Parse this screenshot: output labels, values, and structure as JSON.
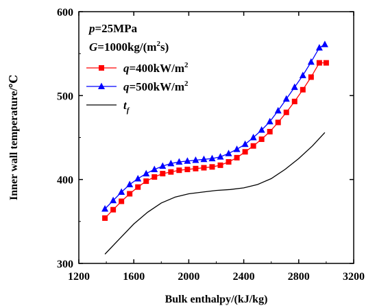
{
  "chart_data": {
    "type": "line",
    "title": "",
    "xlabel": "Bulk enthalpy/(kJ/kg)",
    "ylabel": "Inner wall temperature/℃",
    "xlim": [
      1200,
      3200
    ],
    "ylim": [
      300,
      600
    ],
    "x_ticks": [
      1200,
      1600,
      2000,
      2400,
      2800,
      3200
    ],
    "y_ticks": [
      300,
      400,
      500,
      600
    ],
    "grid": false,
    "legend_position": "top-left",
    "annotations": [
      {
        "italic": "p",
        "text": "=25MPa"
      },
      {
        "italic": "G",
        "text": "=1000kg/(m",
        "sup": "2",
        "tail": "s)"
      }
    ],
    "series": [
      {
        "name": "q=400kW/m2",
        "legend": {
          "italic": "q",
          "text": "=400kW/m",
          "sup": "2"
        },
        "color": "#ff0000",
        "marker": "square",
        "x": [
          1390,
          1450,
          1510,
          1570,
          1630,
          1690,
          1750,
          1810,
          1870,
          1930,
          1990,
          2050,
          2110,
          2170,
          2230,
          2290,
          2350,
          2410,
          2470,
          2530,
          2590,
          2650,
          2710,
          2770,
          2830,
          2890,
          2950,
          3000
        ],
        "y": [
          354,
          364,
          374,
          383,
          391,
          398,
          403,
          407,
          409,
          411,
          412,
          413,
          414,
          415,
          417,
          421,
          426,
          433,
          440,
          448,
          457,
          468,
          480,
          493,
          507,
          522,
          539,
          539
        ]
      },
      {
        "name": "q=500kW/m2",
        "legend": {
          "italic": "q",
          "text": "=500kW/m",
          "sup": "2"
        },
        "color": "#0000ff",
        "marker": "triangle",
        "x": [
          1390,
          1450,
          1510,
          1570,
          1630,
          1690,
          1750,
          1810,
          1870,
          1930,
          1990,
          2050,
          2110,
          2170,
          2230,
          2290,
          2350,
          2410,
          2470,
          2530,
          2590,
          2650,
          2710,
          2770,
          2830,
          2890,
          2950,
          2990
        ],
        "y": [
          365,
          375,
          385,
          394,
          401,
          407,
          412,
          416,
          419,
          421,
          422,
          423,
          424,
          425,
          427,
          431,
          436,
          442,
          450,
          459,
          469,
          482,
          496,
          510,
          524,
          540,
          557,
          561
        ]
      },
      {
        "name": "tf",
        "legend": {
          "italic": "t",
          "sub": "f"
        },
        "color": "#000000",
        "marker": "none",
        "x": [
          1390,
          1500,
          1600,
          1700,
          1800,
          1900,
          2000,
          2100,
          2200,
          2300,
          2400,
          2500,
          2600,
          2700,
          2800,
          2900,
          2990
        ],
        "y": [
          311,
          330,
          347,
          361,
          372,
          379,
          383,
          385,
          387,
          388,
          390,
          394,
          401,
          412,
          425,
          440,
          456
        ]
      }
    ]
  }
}
